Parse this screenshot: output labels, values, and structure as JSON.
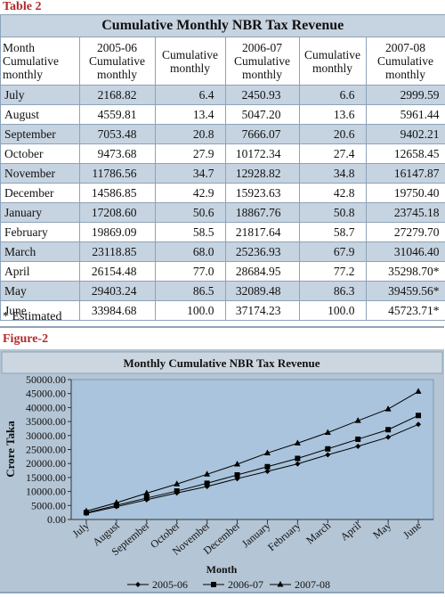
{
  "table": {
    "label": "Table 2",
    "title": "Cumulative Monthly NBR Tax Revenue",
    "headers": [
      [
        "Month",
        "Cumulative",
        "monthly"
      ],
      [
        "2005-06",
        "Cumulative",
        "monthly"
      ],
      [
        "Cumulative",
        "monthly"
      ],
      [
        "2006-07",
        "Cumulative",
        "monthly"
      ],
      [
        "Cumulative",
        "monthly"
      ],
      [
        "2007-08",
        "Cumulative",
        "monthly"
      ]
    ],
    "rows": [
      [
        "July",
        "2168.82",
        "6.4",
        "2450.93",
        "6.6",
        "2999.59"
      ],
      [
        "August",
        "4559.81",
        "13.4",
        "5047.20",
        "13.6",
        "5961.44"
      ],
      [
        "September",
        "7053.48",
        "20.8",
        "7666.07",
        "20.6",
        "9402.21"
      ],
      [
        "October",
        "9473.68",
        "27.9",
        "10172.34",
        "27.4",
        "12658.45"
      ],
      [
        "November",
        "11786.56",
        "34.7",
        "12928.82",
        "34.8",
        "16147.87"
      ],
      [
        "December",
        "14586.85",
        "42.9",
        "15923.63",
        "42.8",
        "19750.40"
      ],
      [
        "January",
        "17208.60",
        "50.6",
        "18867.76",
        "50.8",
        "23745.18"
      ],
      [
        "February",
        "19869.09",
        "58.5",
        "21817.64",
        "58.7",
        "27279.70"
      ],
      [
        "March",
        "23118.85",
        "68.0",
        "25236.93",
        "67.9",
        "31046.40"
      ],
      [
        "April",
        "26154.48",
        "77.0",
        "28684.95",
        "77.2",
        "35298.70*"
      ],
      [
        "May",
        "29403.24",
        "86.5",
        "32089.48",
        "86.3",
        "39459.56*"
      ],
      [
        "June",
        "33984.68",
        "100.0",
        "37174.23",
        "100.0",
        "45723.71*"
      ]
    ],
    "note": "* Estimated"
  },
  "figure": {
    "label": "Figure-2"
  },
  "chart_data": {
    "type": "line",
    "title": "Monthly Cumulative NBR Tax Revenue",
    "xlabel": "Month",
    "ylabel": "Crore Taka",
    "ylim": [
      0,
      50000
    ],
    "ytick_step": 5000,
    "ytick_labels": [
      "0.00",
      "5000.00",
      "10000.00",
      "15000.00",
      "20000.00",
      "25000.00",
      "30000.00",
      "35000.00",
      "40000.00",
      "45000.00",
      "50000.00"
    ],
    "categories": [
      "July",
      "August",
      "September",
      "October",
      "November",
      "December",
      "January",
      "February",
      "March",
      "April",
      "May",
      "June"
    ],
    "grid": false,
    "legend_position": "bottom",
    "series": [
      {
        "name": "2005-06",
        "marker": "diamond",
        "color": "#000000",
        "values": [
          2168.82,
          4559.81,
          7053.48,
          9473.68,
          11786.56,
          14586.85,
          17208.6,
          19869.09,
          23118.85,
          26154.48,
          29403.24,
          33984.68
        ]
      },
      {
        "name": "2006-07",
        "marker": "square",
        "color": "#000000",
        "values": [
          2450.93,
          5047.2,
          7666.07,
          10172.34,
          12928.82,
          15923.63,
          18867.76,
          21817.64,
          25236.93,
          28684.95,
          32089.48,
          37174.23
        ]
      },
      {
        "name": "2007-08",
        "marker": "triangle",
        "color": "#000000",
        "values": [
          2999.59,
          5961.44,
          9402.21,
          12658.45,
          16147.87,
          19750.4,
          23745.18,
          27279.7,
          31046.4,
          35298.7,
          39459.56,
          45723.71
        ]
      }
    ]
  },
  "colors": {
    "accent_red": "#b5282a",
    "band_blue": "#c6d3e0",
    "chart_bg": "#b4c5d5",
    "plot_bg": "#a9c4dc"
  }
}
